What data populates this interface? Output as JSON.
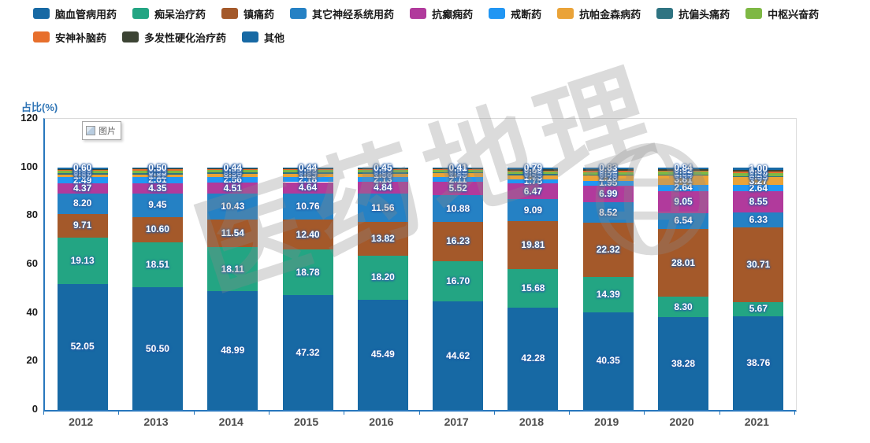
{
  "tooltip": {
    "label": "图片"
  },
  "watermark": {
    "text": "医药地理"
  },
  "axis": {
    "y_title": "占比(%)",
    "y_ticks": [
      0,
      20,
      40,
      60,
      80,
      100,
      120
    ]
  },
  "chart_data": {
    "type": "bar",
    "stacked": true,
    "title": "",
    "xlabel": "",
    "ylabel": "占比(%)",
    "ylim": [
      0,
      120
    ],
    "grid": false,
    "legend_position": "top",
    "categories": [
      "2012",
      "2013",
      "2014",
      "2015",
      "2016",
      "2017",
      "2018",
      "2019",
      "2020",
      "2021"
    ],
    "series": [
      {
        "name": "脑血管病用药",
        "color": "#1769a4",
        "values": [
          52.05,
          50.5,
          48.99,
          47.32,
          45.49,
          44.62,
          42.28,
          40.35,
          38.28,
          38.76
        ]
      },
      {
        "name": "痴呆治疗药",
        "color": "#23a583",
        "values": [
          19.13,
          18.51,
          18.11,
          18.78,
          18.2,
          16.7,
          15.68,
          14.39,
          8.3,
          5.67
        ]
      },
      {
        "name": "镇痛药",
        "color": "#a4592a",
        "values": [
          9.71,
          10.6,
          11.54,
          12.4,
          13.82,
          16.23,
          19.81,
          22.32,
          28.01,
          30.71
        ]
      },
      {
        "name": "其它神经系统用药",
        "color": "#2581c4",
        "values": [
          8.2,
          9.45,
          10.43,
          10.76,
          11.56,
          10.88,
          9.09,
          8.52,
          6.54,
          6.33
        ]
      },
      {
        "name": "抗癫痫药",
        "color": "#b13a9c",
        "values": [
          4.37,
          4.35,
          4.51,
          4.64,
          4.84,
          5.52,
          6.47,
          6.99,
          9.05,
          8.55
        ]
      },
      {
        "name": "戒断药",
        "color": "#2196f3",
        "values": [
          2.49,
          2.61,
          2.56,
          2.18,
          2.13,
          2.11,
          1.75,
          1.95,
          2.64,
          2.64
        ]
      },
      {
        "name": "抗帕金森病药",
        "color": "#eaa338",
        "values": [
          1.07,
          1.12,
          1.17,
          1.29,
          1.36,
          1.48,
          1.73,
          2.1,
          3.81,
          3.27
        ]
      },
      {
        "name": "抗偏头痛药",
        "color": "#2f7482",
        "values": [
          0.6,
          0.58,
          0.56,
          0.54,
          0.52,
          0.5,
          0.48,
          0.46,
          0.44,
          0.55
        ]
      },
      {
        "name": "中枢兴奋药",
        "color": "#7eb844",
        "values": [
          0.97,
          0.95,
          0.92,
          0.88,
          0.85,
          0.82,
          0.9,
          0.98,
          1.09,
          1.2
        ]
      },
      {
        "name": "安神补脑药",
        "color": "#e76f2c",
        "values": [
          0.55,
          0.56,
          0.52,
          0.5,
          0.48,
          0.45,
          0.42,
          0.4,
          0.38,
          0.45
        ]
      },
      {
        "name": "多发性硬化治疗药",
        "color": "#3c4434",
        "values": [
          0.26,
          0.27,
          0.25,
          0.27,
          0.3,
          0.28,
          0.6,
          0.71,
          0.62,
          0.87
        ]
      },
      {
        "name": "其他",
        "color": "#1769a4",
        "values": [
          0.6,
          0.5,
          0.44,
          0.44,
          0.45,
          0.41,
          0.79,
          0.83,
          0.84,
          1.0
        ]
      }
    ]
  }
}
